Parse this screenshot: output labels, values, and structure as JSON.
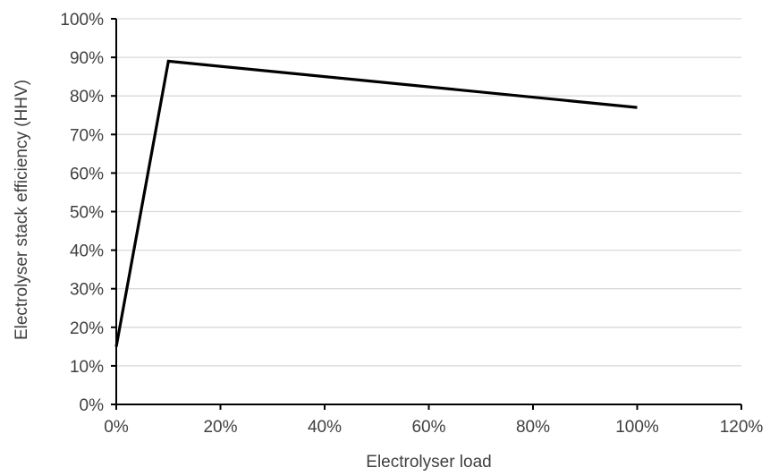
{
  "chart_data": {
    "type": "line",
    "title": "",
    "xlabel": "Electrolyser load",
    "ylabel": "Electrolyser stack efficiency (HHV)",
    "xlim": [
      0,
      120
    ],
    "ylim": [
      0,
      100
    ],
    "x_ticks": [
      "0%",
      "20%",
      "40%",
      "60%",
      "80%",
      "100%",
      "120%"
    ],
    "y_ticks": [
      "0%",
      "10%",
      "20%",
      "30%",
      "40%",
      "50%",
      "60%",
      "70%",
      "80%",
      "90%",
      "100%"
    ],
    "grid": "horizontal",
    "legend": "none",
    "series": [
      {
        "x": [
          0,
          10,
          100
        ],
        "y": [
          15,
          89,
          77
        ],
        "color": "#000000"
      }
    ]
  }
}
